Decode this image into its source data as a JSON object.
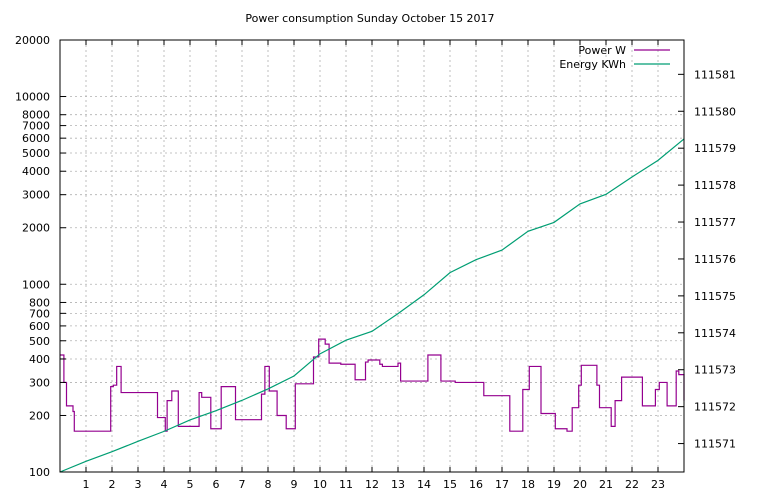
{
  "chart_data": {
    "type": "line",
    "title": "Power consumption Sunday October 15 2017",
    "xlabel": "",
    "ylabel": "",
    "y2label": "",
    "grid": true,
    "legend_placement": "top-right",
    "x_range": [
      0,
      24
    ],
    "x_ticks": [
      1,
      2,
      3,
      4,
      5,
      6,
      7,
      8,
      9,
      10,
      11,
      12,
      13,
      14,
      15,
      16,
      17,
      18,
      19,
      20,
      21,
      22,
      23
    ],
    "y_scale": "log",
    "y_range": [
      100,
      20000
    ],
    "y_ticks": [
      {
        "value": 100,
        "label": "100"
      },
      {
        "value": 200,
        "label": "200"
      },
      {
        "value": 300,
        "label": "300"
      },
      {
        "value": 400,
        "label": "400"
      },
      {
        "value": 500,
        "label": "500"
      },
      {
        "value": 600,
        "label": "600"
      },
      {
        "value": 700,
        "label": "700"
      },
      {
        "value": 800,
        "label": "800"
      },
      {
        "value": 1000,
        "label": "1000"
      },
      {
        "value": 2000,
        "label": "2000"
      },
      {
        "value": 3000,
        "label": "3000"
      },
      {
        "value": 4000,
        "label": "4000"
      },
      {
        "value": 5000,
        "label": "5000"
      },
      {
        "value": 6000,
        "label": "6000"
      },
      {
        "value": 7000,
        "label": "7000"
      },
      {
        "value": 8000,
        "label": "8000"
      },
      {
        "value": 10000,
        "label": "10000"
      },
      {
        "value": 20000,
        "label": "20000"
      }
    ],
    "y2_range": [
      111570.23,
      111581.93
    ],
    "y2_ticks": [
      111571,
      111572,
      111573,
      111574,
      111575,
      111576,
      111577,
      111578,
      111579,
      111580,
      111581
    ],
    "series": [
      {
        "name": "Power W",
        "axis": "y",
        "color": "#94008f",
        "step": true,
        "x": [
          0.0,
          0.15,
          0.25,
          0.5,
          0.55,
          0.62,
          1.95,
          2.05,
          2.18,
          2.35,
          2.8,
          3.75,
          3.8,
          4.05,
          4.12,
          4.3,
          4.55,
          5.35,
          5.45,
          5.8,
          6.2,
          6.75,
          7.2,
          7.75,
          7.88,
          8.05,
          8.35,
          8.7,
          9.05,
          9.75,
          9.95,
          10.2,
          10.35,
          10.8,
          11.35,
          11.75,
          11.85,
          12.3,
          12.4,
          13.0,
          13.1,
          13.7,
          14.15,
          14.65,
          15.2,
          16.3,
          16.4,
          16.55,
          17.0,
          17.3,
          17.4,
          17.8,
          18.05,
          18.5,
          19.05,
          19.35,
          19.5,
          19.7,
          19.95,
          20.05,
          20.65,
          20.75,
          21.2,
          21.35,
          21.6,
          22.4,
          22.9,
          23.05,
          23.35,
          23.7,
          23.8,
          24.0
        ],
        "values": [
          420,
          300,
          225,
          210,
          165,
          165,
          285,
          290,
          365,
          265,
          265,
          195,
          195,
          165,
          240,
          270,
          175,
          265,
          250,
          170,
          285,
          190,
          190,
          260,
          365,
          270,
          200,
          170,
          295,
          410,
          510,
          480,
          380,
          375,
          310,
          385,
          395,
          375,
          365,
          380,
          305,
          305,
          420,
          305,
          300,
          255,
          255,
          255,
          255,
          165,
          165,
          275,
          365,
          205,
          170,
          170,
          165,
          220,
          290,
          370,
          290,
          220,
          175,
          240,
          320,
          225,
          275,
          300,
          225,
          345,
          330,
          240
        ]
      },
      {
        "name": "Energy KWh",
        "axis": "y2",
        "color": "#009e73",
        "step": false,
        "x": [
          0,
          1,
          2,
          3,
          4,
          5,
          6,
          7,
          8,
          9,
          10,
          11,
          12,
          13,
          14,
          15,
          16,
          17,
          18,
          19,
          20,
          21,
          22,
          23,
          24
        ],
        "values": [
          111570.23,
          111570.52,
          111570.78,
          111571.06,
          111571.33,
          111571.64,
          111571.89,
          111572.17,
          111572.48,
          111572.83,
          111573.43,
          111573.8,
          111574.04,
          111574.52,
          111575.03,
          111575.63,
          111575.98,
          111576.24,
          111576.75,
          111576.99,
          111577.49,
          111577.75,
          111578.22,
          111578.67,
          111579.25
        ]
      }
    ]
  }
}
